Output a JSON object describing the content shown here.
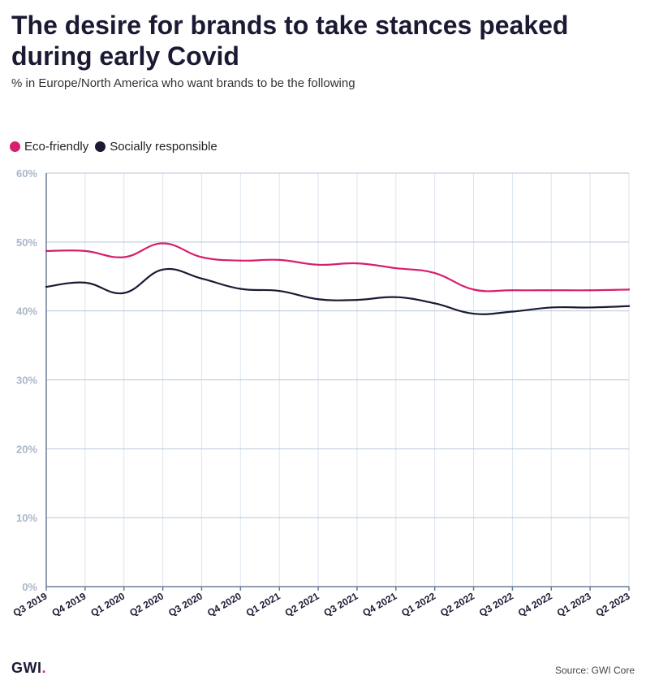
{
  "header": {
    "title": "The desire for brands to take stances peaked during early Covid",
    "subtitle": "% in Europe/North America who want brands to be the following"
  },
  "footer": {
    "logo_text": "GWI",
    "logo_dot": ".",
    "source": "Source: GWI Core"
  },
  "colors": {
    "eco": "#d61f6e",
    "social": "#1b1a33",
    "grid": "#b8c6d6",
    "axis": "#6d7f93"
  },
  "chart_data": {
    "type": "line",
    "title": "The desire for brands to take stances peaked during early Covid",
    "subtitle": "% in Europe/North America who want brands to be the following",
    "xlabel": "",
    "ylabel": "",
    "ylim": [
      0,
      60
    ],
    "yticks": [
      "0%",
      "10%",
      "20%",
      "30%",
      "40%",
      "50%",
      "60%"
    ],
    "ytick_values": [
      0,
      10,
      20,
      30,
      40,
      50,
      60
    ],
    "grid": true,
    "legend_position": "top-left",
    "categories": [
      "Q3 2019",
      "Q4 2019",
      "Q1 2020",
      "Q2 2020",
      "Q3 2020",
      "Q4 2020",
      "Q1 2021",
      "Q2 2021",
      "Q3 2021",
      "Q4 2021",
      "Q1 2022",
      "Q2 2022",
      "Q3 2022",
      "Q4 2022",
      "Q1 2023",
      "Q2 2023"
    ],
    "series": [
      {
        "name": "Eco-friendly",
        "color": "#d61f6e",
        "values": [
          48.7,
          48.7,
          47.8,
          49.8,
          47.8,
          47.3,
          47.4,
          46.7,
          46.9,
          46.2,
          45.5,
          43.1,
          43.0,
          43.0,
          43.0,
          43.1
        ]
      },
      {
        "name": "Socially responsible",
        "color": "#1b1a33",
        "values": [
          43.5,
          44.1,
          42.6,
          46.0,
          44.7,
          43.2,
          42.9,
          41.7,
          41.6,
          42.0,
          41.1,
          39.6,
          39.9,
          40.5,
          40.5,
          40.7
        ]
      }
    ]
  }
}
